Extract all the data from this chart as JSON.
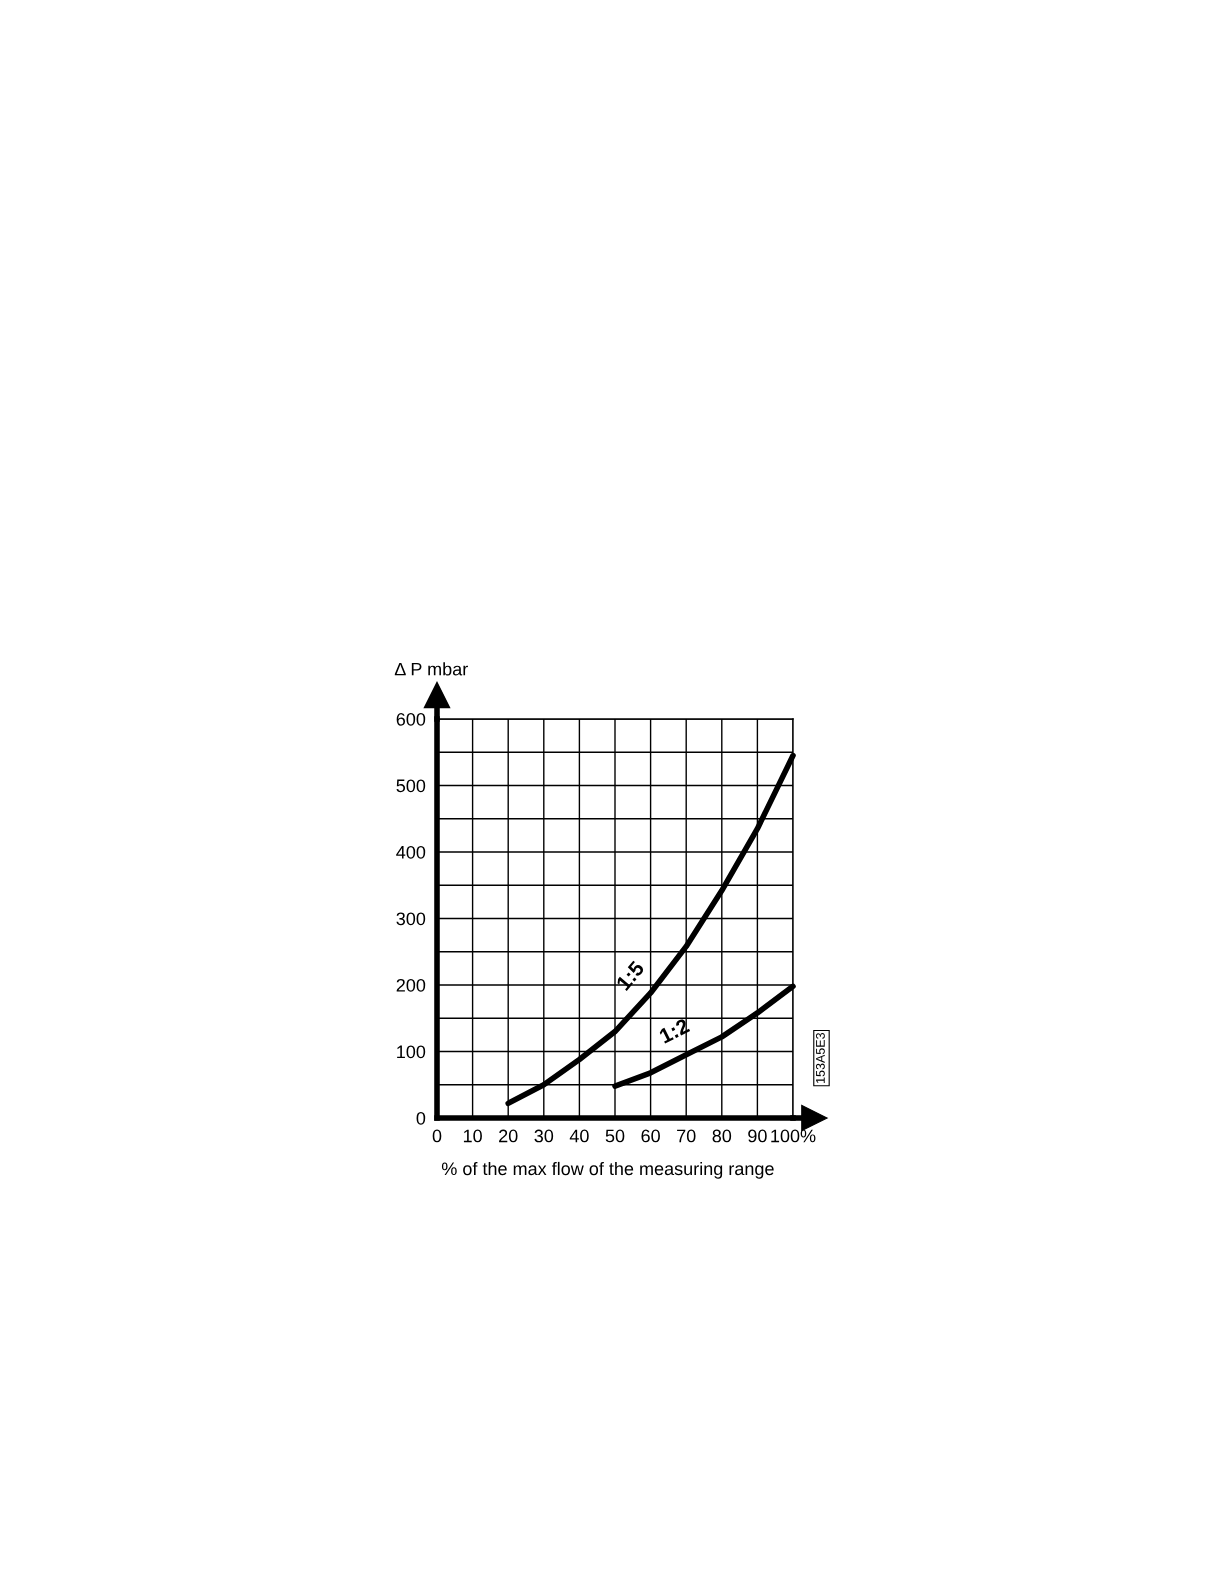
{
  "chart_data": {
    "type": "line",
    "xlabel": "% of the max flow of the measuring range",
    "ylabel": "Δ P mbar",
    "xlim": [
      0,
      100
    ],
    "xticks": [
      0,
      10,
      20,
      30,
      40,
      50,
      60,
      70,
      80,
      90,
      {
        "value": 100,
        "label": "100%"
      }
    ],
    "ylim": [
      0,
      600
    ],
    "yticks": [
      0,
      {
        "value": 50,
        "label": null
      },
      100,
      {
        "value": 150,
        "label": null
      },
      200,
      {
        "value": 250,
        "label": null
      },
      300,
      {
        "value": 350,
        "label": null
      },
      400,
      {
        "value": 450,
        "label": null
      },
      500,
      {
        "value": 550,
        "label": null
      },
      600
    ],
    "grid": true,
    "line_style": "solid",
    "marker": "none",
    "series": [
      {
        "name": "1:5",
        "color": "#000000",
        "x": [
          20,
          30,
          40,
          50,
          60,
          70,
          80,
          90,
          100
        ],
        "values": [
          22,
          50,
          88,
          130,
          188,
          258,
          342,
          435,
          545
        ]
      },
      {
        "name": "1:2",
        "color": "#000000",
        "x": [
          50,
          60,
          70,
          80,
          90,
          100
        ],
        "values": [
          48,
          68,
          95,
          122,
          158,
          198
        ]
      }
    ],
    "annotations": [
      "153A5E3"
    ]
  }
}
